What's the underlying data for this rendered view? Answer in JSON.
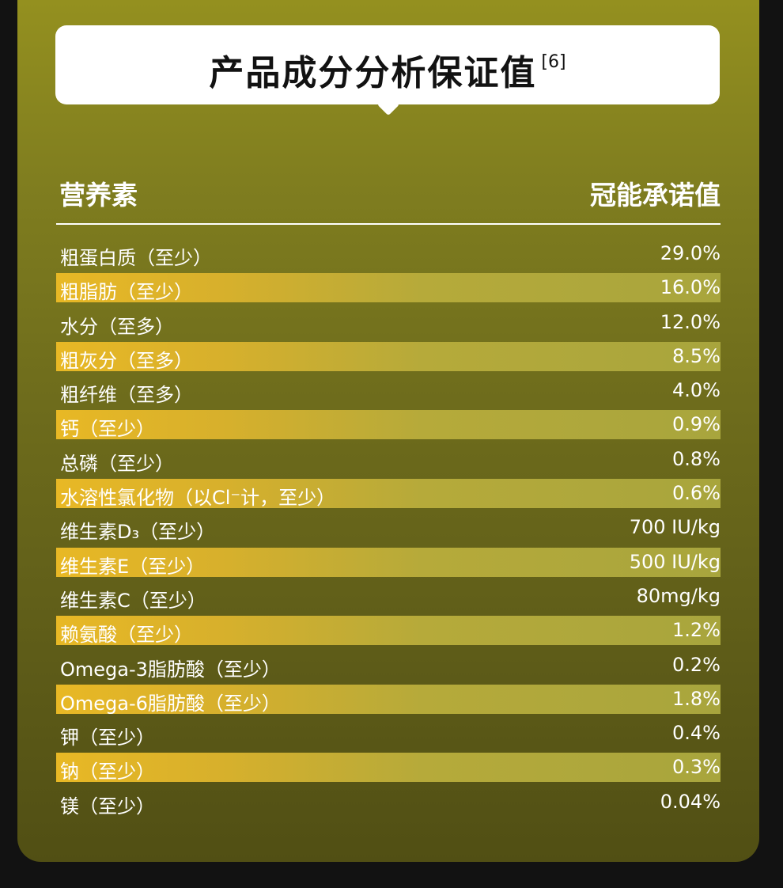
{
  "title": "产品成分分析保证值",
  "title_ref": "[6]",
  "header": {
    "left": "营养素",
    "right": "冠能承诺值"
  },
  "rows": [
    {
      "name": "粗蛋白质（至少）",
      "value": "29.0%"
    },
    {
      "name": "粗脂肪（至少）",
      "value": "16.0%"
    },
    {
      "name": "水分（至多）",
      "value": "12.0%"
    },
    {
      "name": "粗灰分（至多）",
      "value": "8.5%"
    },
    {
      "name": "粗纤维（至多）",
      "value": "4.0%"
    },
    {
      "name": "钙（至少）",
      "value": "0.9%"
    },
    {
      "name": "总磷（至少）",
      "value": "0.8%"
    },
    {
      "name": "水溶性氯化物（以Cl⁻计，至少）",
      "value": "0.6%"
    },
    {
      "name": "维生素D₃（至少）",
      "value": "700 IU/kg"
    },
    {
      "name": "维生素E（至少）",
      "value": "500 IU/kg"
    },
    {
      "name": "维生素C（至少）",
      "value": "80mg/kg"
    },
    {
      "name": "赖氨酸（至少）",
      "value": "1.2%"
    },
    {
      "name": "Omega-3脂肪酸（至少）",
      "value": "0.2%"
    },
    {
      "name": "Omega-6脂肪酸（至少）",
      "value": "1.8%"
    },
    {
      "name": "钾（至少）",
      "value": "0.4%"
    },
    {
      "name": "钠（至少）",
      "value": "0.3%"
    },
    {
      "name": "镁（至少）",
      "value": "0.04%"
    }
  ],
  "colors": {
    "highlight": "#e8b825",
    "card_top": "#94901f",
    "card_bottom": "#514f14"
  }
}
